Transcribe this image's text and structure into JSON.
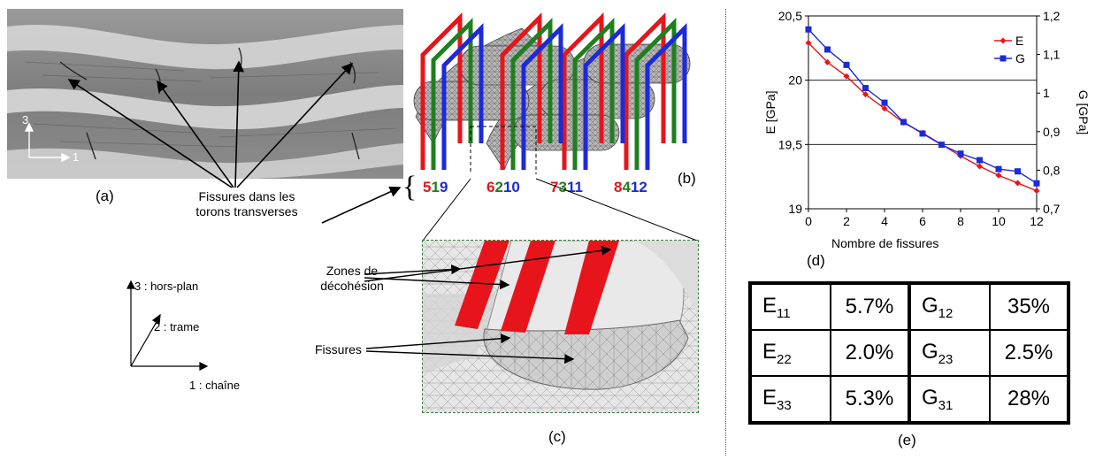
{
  "panels": {
    "a": "(a)",
    "b": "(b)",
    "c": "(c)",
    "d": "(d)",
    "e": "(e)"
  },
  "micro": {
    "axis3": "3",
    "axis1": "1",
    "cracks_label_line1": "Fissures dans les",
    "cracks_label_line2": "torons transverses"
  },
  "coords": {
    "axis3": "3 : hors-plan",
    "axis2": "2 : trame",
    "axis1": "1 : chaîne"
  },
  "model": {
    "groups": [
      {
        "nums": [
          {
            "t": "5",
            "c": "#e8141b"
          },
          {
            "t": "1",
            "c": "#1f7f1f"
          },
          {
            "t": "9",
            "c": "#1c2ad9"
          }
        ]
      },
      {
        "nums": [
          {
            "t": "6",
            "c": "#e8141b"
          },
          {
            "t": "2",
            "c": "#1f7f1f"
          },
          {
            "t": "10",
            "c": "#1c2ad9"
          }
        ]
      },
      {
        "nums": [
          {
            "t": "7",
            "c": "#e8141b"
          },
          {
            "t": "3",
            "c": "#1f7f1f"
          },
          {
            "t": "11",
            "c": "#1c2ad9"
          }
        ]
      },
      {
        "nums": [
          {
            "t": "8",
            "c": "#e8141b"
          },
          {
            "t": "4",
            "c": "#1f7f1f"
          },
          {
            "t": "12",
            "c": "#1c2ad9"
          }
        ]
      }
    ]
  },
  "zoom": {
    "decohesion_line1": "Zones de",
    "decohesion_line2": "décohésion",
    "cracks": "Fissures"
  },
  "chart_data": {
    "type": "line",
    "xlabel": "Nombre de fissures",
    "ylabel_left": "E [GPa]",
    "ylabel_right": "G [GPa]",
    "xlim": [
      0,
      12
    ],
    "ylim_left": [
      19,
      20.5
    ],
    "ylim_right": [
      0.7,
      1.2
    ],
    "x_ticks": [
      "0",
      "2",
      "4",
      "6",
      "8",
      "10",
      "12"
    ],
    "y_ticks_left": [
      "19",
      "19,5",
      "20",
      "20,5"
    ],
    "y_ticks_right": [
      "0,7",
      "0,8",
      "0,9",
      "1",
      "1,1",
      "1,2"
    ],
    "grid": "horizontal",
    "legend": "top-right",
    "series": [
      {
        "name": "E",
        "axis": "left",
        "color": "#e8141b",
        "marker": "diamond",
        "x": [
          0,
          1,
          2,
          3,
          4,
          5,
          6,
          7,
          8,
          9,
          10,
          11,
          12
        ],
        "y": [
          20.29,
          20.14,
          20.03,
          19.89,
          19.78,
          19.67,
          19.59,
          19.5,
          19.41,
          19.33,
          19.26,
          19.2,
          19.14
        ]
      },
      {
        "name": "G",
        "axis": "right",
        "color": "#1c2ad9",
        "marker": "square",
        "x": [
          0,
          1,
          2,
          3,
          4,
          5,
          6,
          7,
          8,
          9,
          10,
          11,
          12
        ],
        "y": [
          1.165,
          1.113,
          1.073,
          1.013,
          0.975,
          0.925,
          0.895,
          0.866,
          0.843,
          0.826,
          0.803,
          0.797,
          0.766
        ]
      }
    ]
  },
  "table": {
    "rows": [
      {
        "e_sym": "E",
        "e_sub": "11",
        "e_val": "5.7%",
        "g_sym": "G",
        "g_sub": "12",
        "g_val": "35%"
      },
      {
        "e_sym": "E",
        "e_sub": "22",
        "e_val": "2.0%",
        "g_sym": "G",
        "g_sub": "23",
        "g_val": "2.5%"
      },
      {
        "e_sym": "E",
        "e_sub": "33",
        "e_val": "5.3%",
        "g_sym": "G",
        "g_sub": "31",
        "g_val": "28%"
      }
    ]
  }
}
